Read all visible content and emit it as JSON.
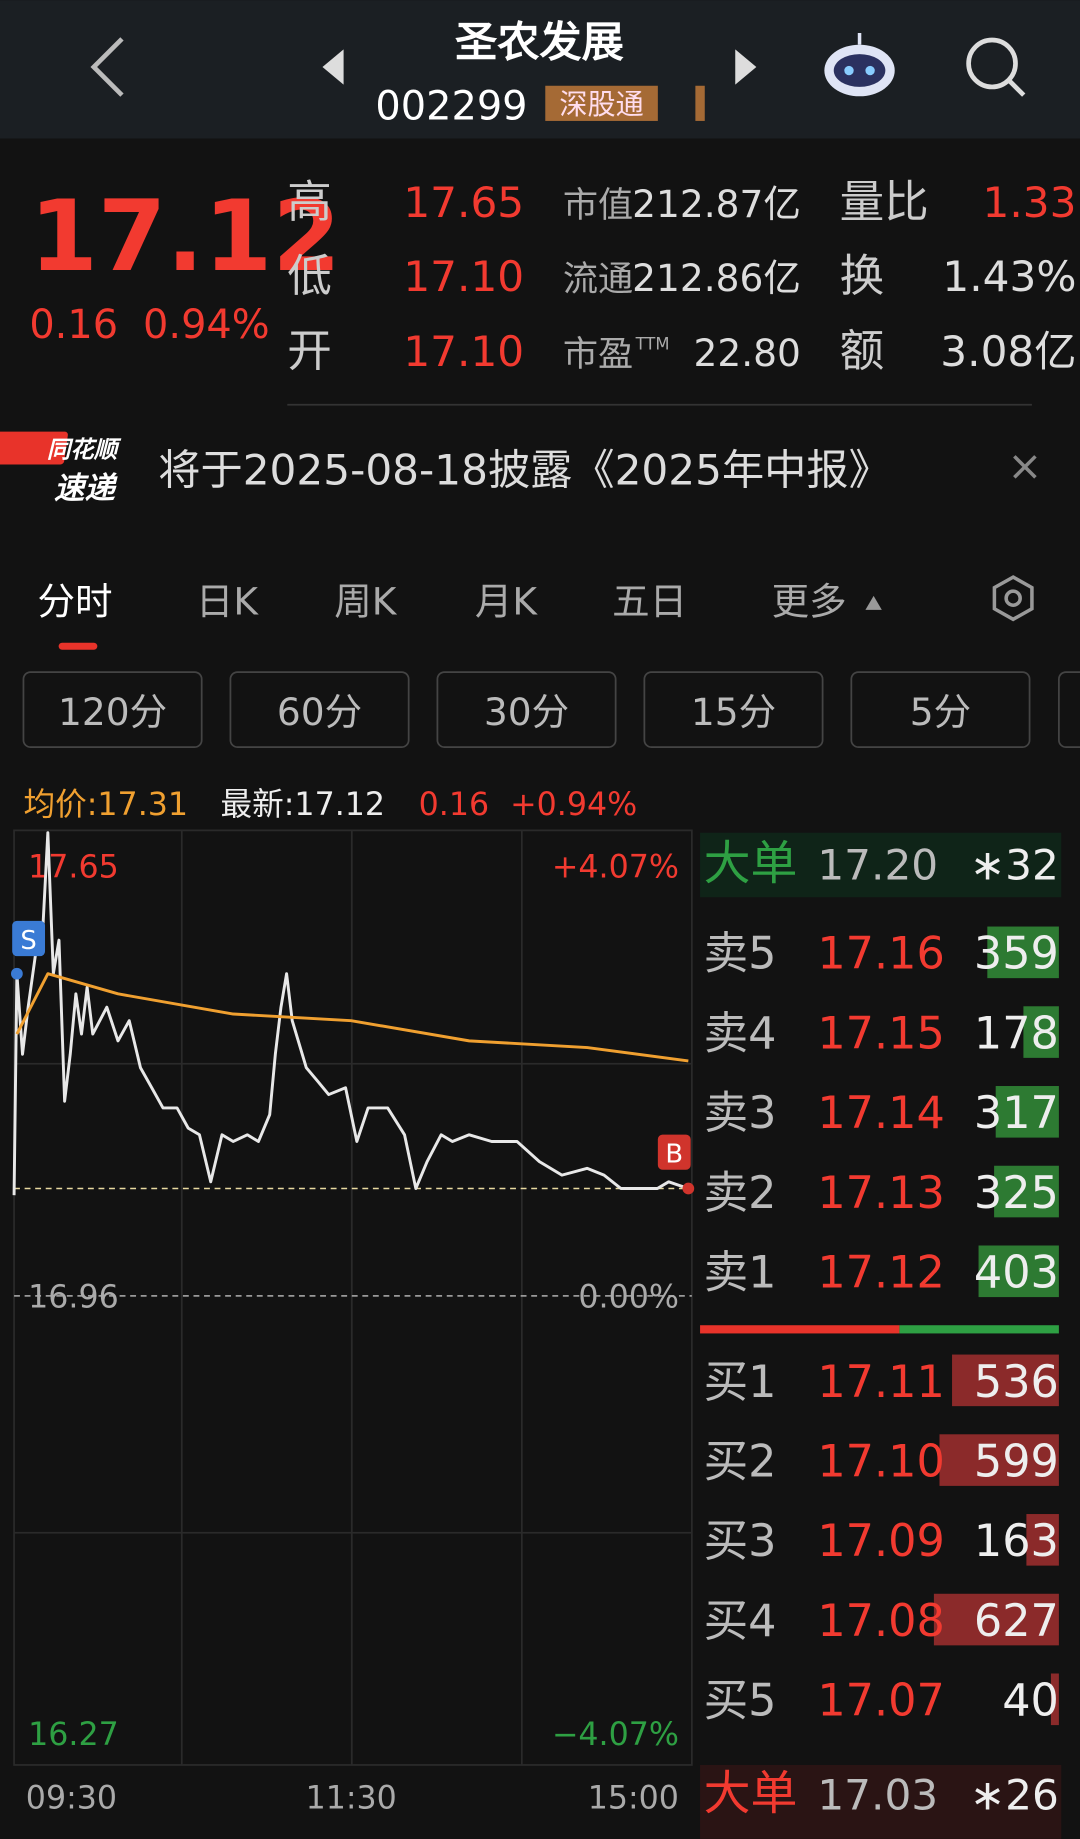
{
  "header": {
    "title": "圣农发展",
    "code": "002299",
    "badge": "深股通"
  },
  "quote": {
    "price": "17.12",
    "change": "0.16",
    "change_pct": "0.94%",
    "stats": [
      {
        "label": "高",
        "value": "17.65"
      },
      {
        "label": "低",
        "value": "17.10"
      },
      {
        "label": "开",
        "value": "17.10"
      },
      {
        "label": "市值",
        "value": "212.87亿"
      },
      {
        "label": "流通",
        "value": "212.86亿"
      },
      {
        "label": "市盈",
        "sup": "TTM",
        "value": "22.80"
      },
      {
        "label": "量比",
        "value": "1.33"
      },
      {
        "label": "换",
        "value": "1.43%"
      },
      {
        "label": "额",
        "value": "3.08亿"
      }
    ]
  },
  "notice": {
    "logo_top": "同花顺",
    "logo_bottom": "速递",
    "text": "将于2025-08-18披露《2025年中报》"
  },
  "tabs": [
    "分时",
    "日K",
    "周K",
    "月K",
    "五日",
    "更多"
  ],
  "intervals": [
    "120分",
    "60分",
    "30分",
    "15分",
    "5分"
  ],
  "summary": {
    "avg": "均价:17.31",
    "latest": "最新:17.12",
    "change": "0.16",
    "change_pct": "+0.94%"
  },
  "chart_data": {
    "type": "line",
    "xlim": [
      0,
      240
    ],
    "xticks": [
      {
        "value": 0,
        "label": "09:30"
      },
      {
        "value": 120,
        "label": "11:30"
      },
      {
        "value": 240,
        "label": "15:00"
      }
    ],
    "ylim": [
      16.27,
      17.65
    ],
    "yticks": [
      17.65,
      16.96,
      16.27
    ],
    "y2lim": [
      -4.07,
      4.07
    ],
    "y2ticks": [
      {
        "value": 4.07,
        "label": "+4.07%"
      },
      {
        "value": 0,
        "label": "0.00%"
      },
      {
        "value": -4.07,
        "label": "−4.07%"
      }
    ],
    "series": [
      {
        "color": "#e8e8e8",
        "x": [
          0,
          1,
          3,
          5,
          8,
          10,
          12,
          14,
          16,
          18,
          20,
          22,
          24,
          26,
          28,
          33,
          37,
          41,
          45,
          49,
          53,
          58,
          62,
          66,
          70,
          74,
          78,
          83,
          87,
          91,
          93,
          95,
          97,
          99,
          104,
          108,
          112,
          118,
          122,
          126,
          133,
          139,
          143,
          147,
          152,
          156,
          162,
          170,
          179,
          187,
          195,
          204,
          210,
          216,
          222,
          229,
          233,
          240
        ],
        "values": [
          17.11,
          17.44,
          17.32,
          17.39,
          17.48,
          17.49,
          17.65,
          17.44,
          17.49,
          17.25,
          17.32,
          17.41,
          17.35,
          17.42,
          17.35,
          17.39,
          17.34,
          17.37,
          17.3,
          17.27,
          17.24,
          17.24,
          17.21,
          17.2,
          17.13,
          17.2,
          17.19,
          17.2,
          17.19,
          17.23,
          17.32,
          17.39,
          17.44,
          17.37,
          17.3,
          17.28,
          17.26,
          17.27,
          17.19,
          17.24,
          17.24,
          17.2,
          17.12,
          17.16,
          17.2,
          17.19,
          17.2,
          17.19,
          17.19,
          17.16,
          17.14,
          17.15,
          17.14,
          17.12,
          17.12,
          17.12,
          17.13,
          17.12
        ]
      },
      {
        "color": "#f0a030",
        "x": [
          1,
          12,
          37,
          78,
          120,
          162,
          204,
          240
        ],
        "values": [
          17.35,
          17.44,
          17.41,
          17.38,
          17.37,
          17.34,
          17.33,
          17.31
        ]
      }
    ],
    "markers": [
      {
        "label": "S",
        "x": 1,
        "value": 17.44,
        "color": "#3a7bd5"
      },
      {
        "label": "B",
        "x": 240,
        "value": 17.12,
        "color": "#d0342c"
      }
    ]
  },
  "order_book": {
    "top_big": {
      "label": "大单",
      "price": "17.20",
      "count": "∗32"
    },
    "asks": [
      {
        "label": "卖5",
        "price": "17.16",
        "volume": 359
      },
      {
        "label": "卖4",
        "price": "17.15",
        "volume": 178
      },
      {
        "label": "卖3",
        "price": "17.14",
        "volume": 317
      },
      {
        "label": "卖2",
        "price": "17.13",
        "volume": 325
      },
      {
        "label": "卖1",
        "price": "17.12",
        "volume": 403
      }
    ],
    "bids": [
      {
        "label": "买1",
        "price": "17.11",
        "volume": 536
      },
      {
        "label": "买2",
        "price": "17.10",
        "volume": 599
      },
      {
        "label": "买3",
        "price": "17.09",
        "volume": 163
      },
      {
        "label": "买4",
        "price": "17.08",
        "volume": 627
      },
      {
        "label": "买5",
        "price": "17.07",
        "volume": 40
      }
    ],
    "bottom_big": {
      "label": "大单",
      "price": "17.03",
      "count": "∗26"
    }
  }
}
